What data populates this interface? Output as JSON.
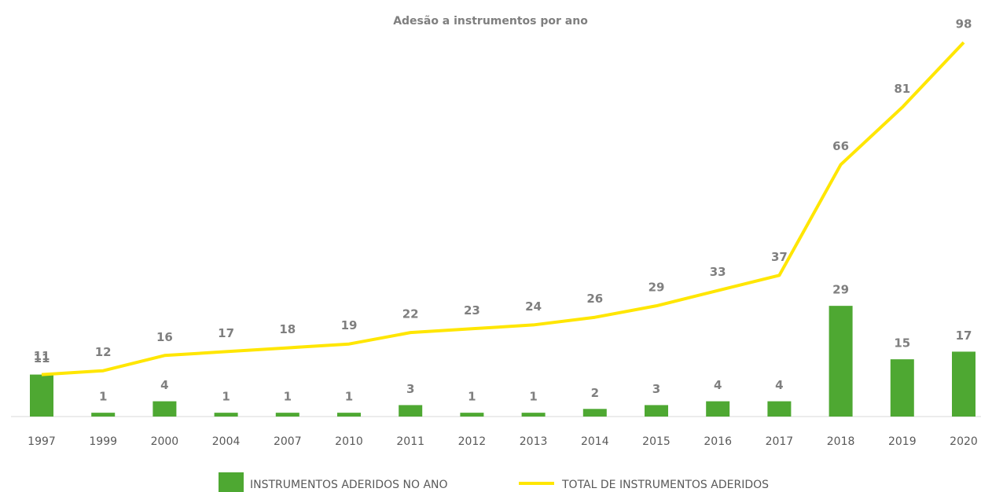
{
  "chart_data": {
    "type": "bar",
    "title": "Adesão a instrumentos por ano",
    "categories": [
      "1997",
      "1999",
      "2000",
      "2004",
      "2007",
      "2010",
      "2011",
      "2012",
      "2013",
      "2014",
      "2015",
      "2016",
      "2017",
      "2018",
      "2019",
      "2020"
    ],
    "series": [
      {
        "name": "INSTRUMENTOS ADERIDOS NO ANO",
        "type": "bar",
        "color": "#4ea832",
        "values": [
          11,
          1,
          4,
          1,
          1,
          1,
          3,
          1,
          1,
          2,
          3,
          4,
          4,
          29,
          15,
          17
        ]
      },
      {
        "name": "TOTAL DE INSTRUMENTOS ADERIDOS",
        "type": "line",
        "color": "#ffe600",
        "values": [
          11,
          12,
          16,
          17,
          18,
          19,
          22,
          23,
          24,
          26,
          29,
          33,
          37,
          66,
          81,
          98
        ]
      }
    ],
    "ylim": [
      0,
      105
    ]
  }
}
